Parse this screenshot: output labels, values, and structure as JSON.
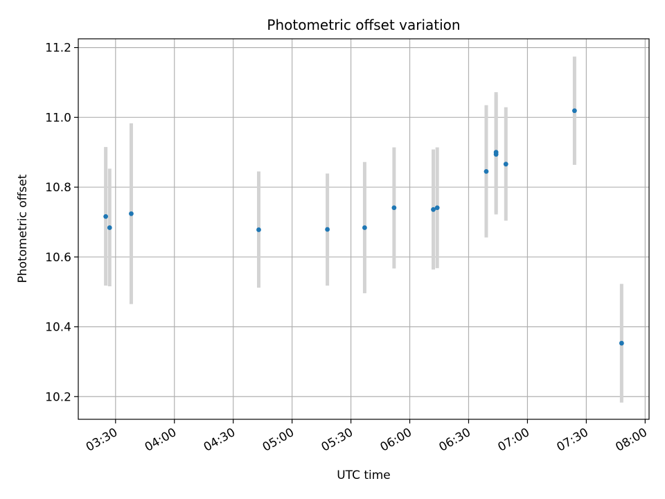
{
  "chart_data": {
    "type": "scatter",
    "title": "Photometric offset variation",
    "xlabel": "UTC time",
    "ylabel": "Photometric offset",
    "x_is_time": true,
    "xlim": [
      "03:11",
      "08:02"
    ],
    "ylim": [
      10.135,
      11.225
    ],
    "xticks": [
      "03:30",
      "04:00",
      "04:30",
      "05:00",
      "05:30",
      "06:00",
      "06:30",
      "07:00",
      "07:30",
      "08:00"
    ],
    "yticks": [
      10.2,
      10.4,
      10.6,
      10.8,
      11.0,
      11.2
    ],
    "grid": true,
    "errorbar_color": "#d3d3d3",
    "point_color": "#1f77b4",
    "points": [
      {
        "x": "03:25",
        "y": 10.716,
        "ylow": 10.518,
        "yhigh": 10.915
      },
      {
        "x": "03:27",
        "y": 10.684,
        "ylow": 10.516,
        "yhigh": 10.853
      },
      {
        "x": "03:38",
        "y": 10.724,
        "ylow": 10.465,
        "yhigh": 10.983
      },
      {
        "x": "04:43",
        "y": 10.678,
        "ylow": 10.512,
        "yhigh": 10.845
      },
      {
        "x": "05:18",
        "y": 10.679,
        "ylow": 10.518,
        "yhigh": 10.839
      },
      {
        "x": "05:37",
        "y": 10.684,
        "ylow": 10.496,
        "yhigh": 10.872
      },
      {
        "x": "05:52",
        "y": 10.741,
        "ylow": 10.567,
        "yhigh": 10.914
      },
      {
        "x": "06:12",
        "y": 10.736,
        "ylow": 10.564,
        "yhigh": 10.908
      },
      {
        "x": "06:14",
        "y": 10.741,
        "ylow": 10.568,
        "yhigh": 10.914
      },
      {
        "x": "06:39",
        "y": 10.845,
        "ylow": 10.656,
        "yhigh": 11.035
      },
      {
        "x": "06:44",
        "y": 10.9,
        "ylow": 10.728,
        "yhigh": 11.072
      },
      {
        "x": "06:44",
        "y": 10.894,
        "ylow": 10.722,
        "yhigh": 11.066
      },
      {
        "x": "06:49",
        "y": 10.866,
        "ylow": 10.704,
        "yhigh": 11.029
      },
      {
        "x": "07:24",
        "y": 11.019,
        "ylow": 10.864,
        "yhigh": 11.174
      },
      {
        "x": "07:48",
        "y": 10.353,
        "ylow": 10.183,
        "yhigh": 10.523
      }
    ]
  }
}
